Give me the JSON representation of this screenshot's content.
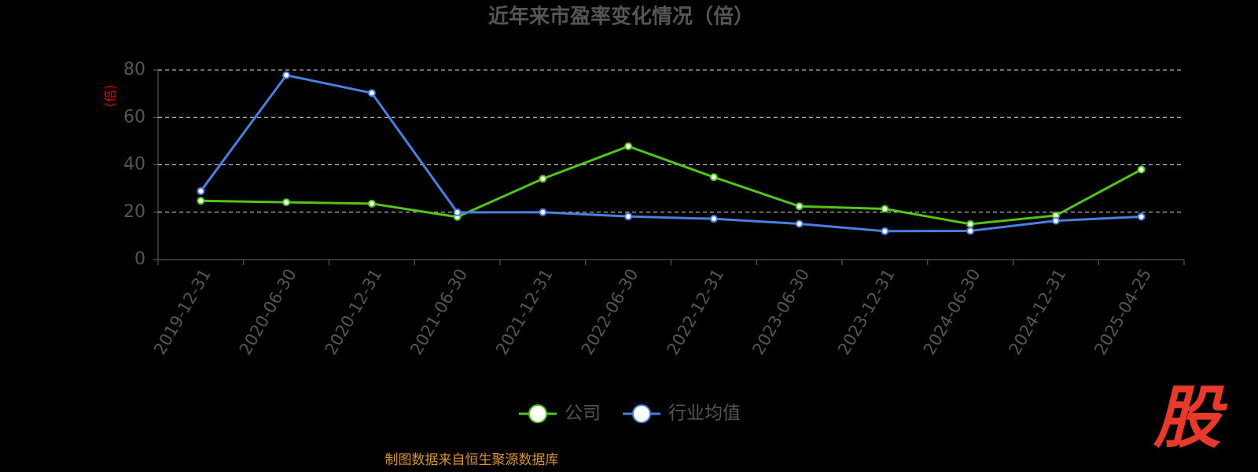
{
  "chart_data": {
    "type": "line",
    "title": "近年来市盈率变化情况（倍）",
    "y_label": "(倍)",
    "categories": [
      "2019-12-31",
      "2020-06-30",
      "2020-12-31",
      "2021-06-30",
      "2021-12-31",
      "2022-06-30",
      "2022-12-31",
      "2023-06-30",
      "2023-12-31",
      "2024-06-30",
      "2024-12-31",
      "2025-04-25"
    ],
    "series": [
      {
        "name": "公司",
        "color": "#52c41a",
        "values": [
          24.8,
          24.2,
          23.6,
          18.0,
          34.1,
          47.8,
          34.8,
          22.5,
          21.4,
          15.0,
          18.6,
          38.0
        ]
      },
      {
        "name": "行业均值",
        "color": "#4a7fe0",
        "values": [
          28.9,
          77.8,
          70.3,
          19.9,
          20.0,
          18.2,
          17.2,
          15.1,
          12.0,
          12.1,
          16.4,
          18.1
        ]
      }
    ],
    "ylim": [
      0,
      80
    ],
    "yticks": [
      0,
      20,
      40,
      60,
      80
    ],
    "grid": true,
    "source": "制图数据来自恒生聚源数据库",
    "logo": "股"
  }
}
